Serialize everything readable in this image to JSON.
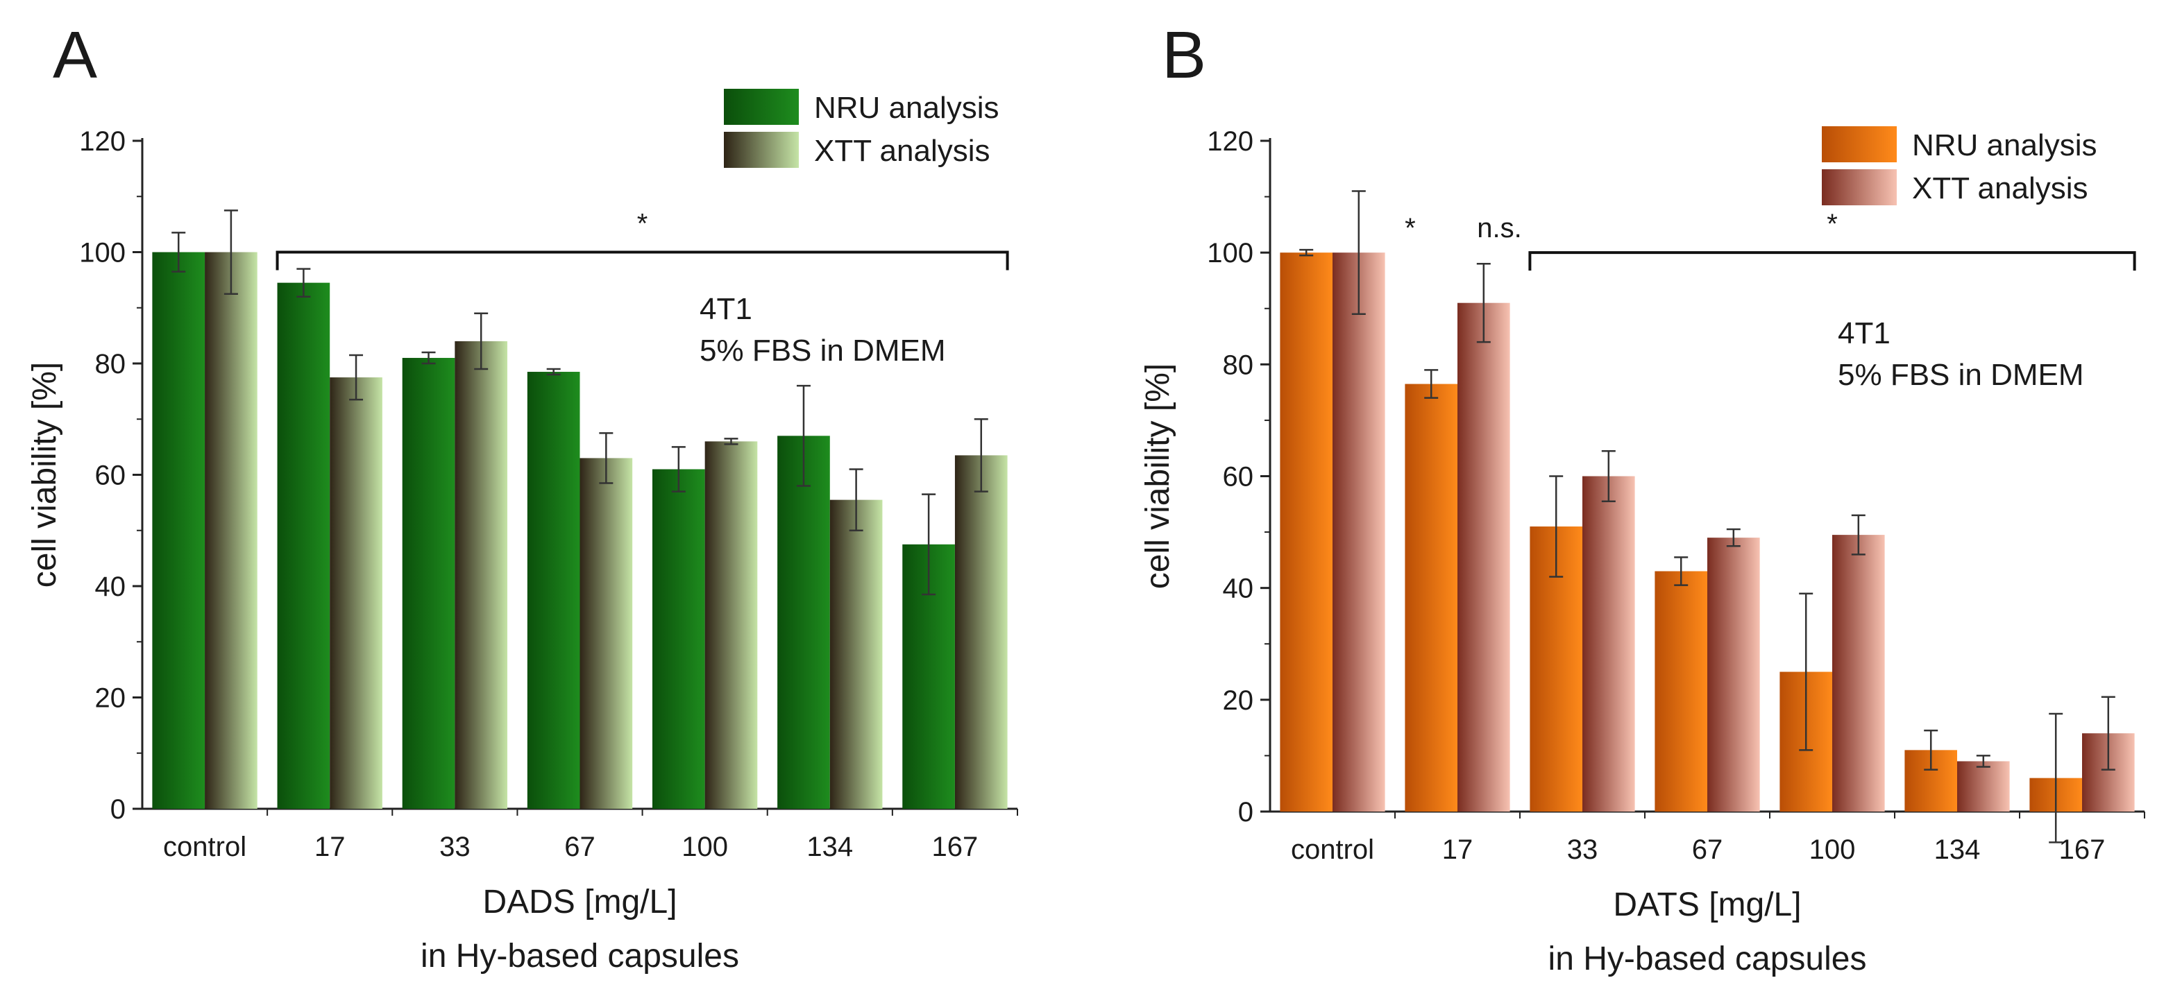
{
  "chart_data": [
    {
      "type": "bar",
      "panel": "A",
      "categories": [
        "control",
        "17",
        "33",
        "67",
        "100",
        "134",
        "167"
      ],
      "series": [
        {
          "name": "NRU analysis",
          "values": [
            100,
            94.5,
            81,
            78.5,
            61,
            67,
            47.5
          ],
          "errors": [
            3.5,
            2.5,
            1,
            0.5,
            4,
            9,
            9
          ]
        },
        {
          "name": "XTT analysis",
          "values": [
            100,
            77.5,
            84,
            63,
            66,
            55.5,
            63.5
          ],
          "errors": [
            7.5,
            4,
            5,
            4.5,
            0.5,
            5.5,
            6.5
          ]
        }
      ],
      "colors": {
        "s0_dark": "#0b4f0b",
        "s0_light": "#1e8c1e",
        "s1_dark": "#2e2416",
        "s1_light": "#c5e4a6"
      },
      "xlabel": "DADS [mg/L]",
      "xlabel2": "in Hy-based capsules",
      "ylabel": "cell viability [%]",
      "ylim": [
        0,
        120
      ],
      "yticks": [
        0,
        20,
        40,
        60,
        80,
        100,
        120
      ],
      "annotation_lines": [
        "4T1",
        "5% FBS in DMEM"
      ],
      "significance": [
        {
          "label": "*",
          "from_category": "17",
          "to_category": "167",
          "level": 100
        }
      ],
      "legend": "top-right",
      "grid": false
    },
    {
      "type": "bar",
      "panel": "B",
      "categories": [
        "control",
        "17",
        "33",
        "67",
        "100",
        "134",
        "167"
      ],
      "series": [
        {
          "name": "NRU analysis",
          "values": [
            100,
            76.5,
            51,
            43,
            25,
            11,
            6
          ],
          "errors": [
            0.5,
            2.5,
            9,
            2.5,
            14,
            3.5,
            11.5
          ]
        },
        {
          "name": "XTT analysis",
          "values": [
            100,
            91,
            60,
            49,
            49.5,
            9,
            14
          ],
          "errors": [
            11,
            7,
            4.5,
            1.5,
            3.5,
            1,
            6.5
          ]
        }
      ],
      "colors": {
        "s0_dark": "#b94e06",
        "s0_light": "#ff8a1a",
        "s1_dark": "#7a2c20",
        "s1_light": "#f7c2b2"
      },
      "xlabel": "DATS [mg/L]",
      "xlabel2": "in Hy-based capsules",
      "ylabel": "cell viability [%]",
      "ylim": [
        0,
        120
      ],
      "yticks": [
        0,
        20,
        40,
        60,
        80,
        100,
        120
      ],
      "annotation_lines": [
        "4T1",
        "5% FBS in DMEM"
      ],
      "significance": [
        {
          "label": "*",
          "category": "17",
          "level": 104
        },
        {
          "label": "n.s.",
          "category": "17",
          "level": 104,
          "offset": 1
        },
        {
          "label": "*",
          "from_category": "33",
          "to_category": "167",
          "level": 100
        }
      ],
      "legend": "top-right",
      "grid": false
    }
  ]
}
